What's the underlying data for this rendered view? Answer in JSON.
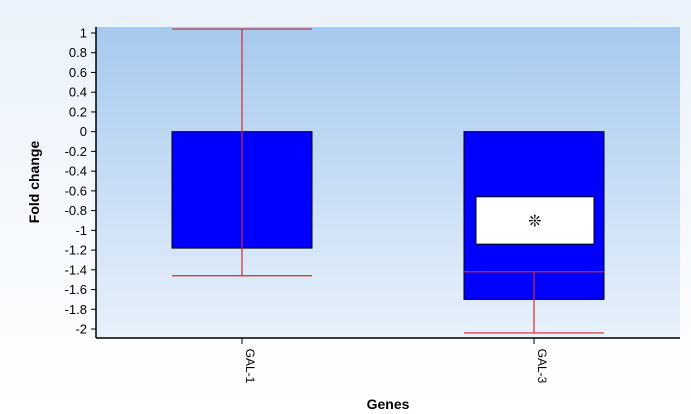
{
  "chart_data": {
    "type": "bar",
    "title": "",
    "xlabel": "Genes",
    "ylabel": "Fold change",
    "categories": [
      "GAL-1",
      "GAL-3"
    ],
    "values": [
      -1.18,
      -1.7
    ],
    "error_low": [
      -1.46,
      -2.04
    ],
    "error_high": [
      1.04,
      -1.42
    ],
    "ylim": [
      -2.1,
      1.1
    ],
    "yticks": [
      1,
      0.8,
      0.6,
      0.4,
      0.2,
      0,
      -0.2,
      -0.4,
      -0.6,
      -0.8,
      -1,
      -1.2,
      -1.4,
      -1.6,
      -1.8,
      -2
    ],
    "annotations": [
      {
        "category": "GAL-3",
        "text": "❊",
        "box_y_range": [
          -1.14,
          -0.66
        ]
      }
    ],
    "grid": false,
    "legend": "none",
    "colors": {
      "bar": "#0000ff",
      "error_bar": "#d42a2a",
      "plot_bg_top": "#a6c9ee",
      "plot_bg_bottom": "#e8f1fb",
      "outer_bg_top": "#eaf2fb",
      "outer_bg_bottom": "#ffffff"
    }
  }
}
